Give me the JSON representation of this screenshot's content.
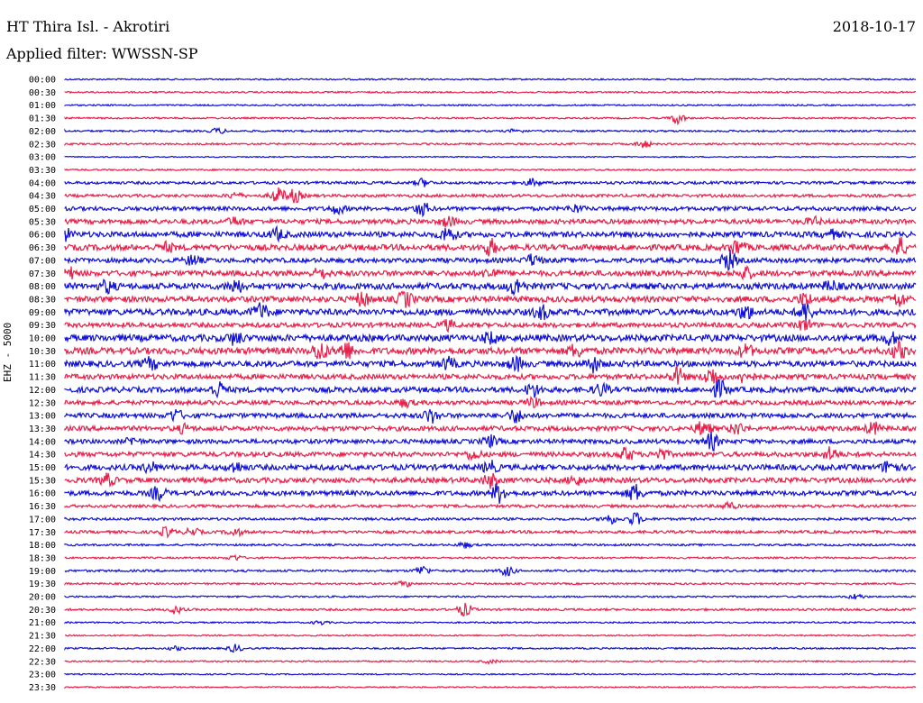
{
  "header": {
    "title": "HT Thira Isl. - Akrotiri",
    "date": "2018-10-17",
    "filter": "Applied filter: WWSSN-SP"
  },
  "y_axis_label": "EHZ - 5000",
  "colors": {
    "even_row": "#1010d8",
    "odd_row": "#e8204a"
  },
  "chart_data": {
    "type": "line",
    "title": "HT Thira Isl. - Akrotiri",
    "subtitle": "Applied filter: WWSSN-SP",
    "ylabel": "EHZ - 5000",
    "rows": [
      "00:00",
      "00:30",
      "01:00",
      "01:30",
      "02:00",
      "02:30",
      "03:00",
      "03:30",
      "04:00",
      "04:30",
      "05:00",
      "05:30",
      "06:00",
      "06:30",
      "07:00",
      "07:30",
      "08:00",
      "08:30",
      "09:00",
      "09:30",
      "10:00",
      "10:30",
      "11:00",
      "11:30",
      "12:00",
      "12:30",
      "13:00",
      "13:30",
      "14:00",
      "14:30",
      "15:00",
      "15:30",
      "16:00",
      "16:30",
      "17:00",
      "17:30",
      "18:00",
      "18:30",
      "19:00",
      "19:30",
      "20:00",
      "20:30",
      "21:00",
      "21:30",
      "22:00",
      "22:30",
      "23:00",
      "23:30"
    ],
    "noise_level": [
      0.8,
      0.9,
      0.8,
      0.9,
      1.0,
      1.0,
      0.6,
      0.9,
      1.5,
      1.6,
      2.2,
      2.6,
      3.0,
      3.2,
      2.6,
      3.0,
      3.4,
      3.2,
      3.4,
      2.6,
      3.6,
      3.6,
      3.2,
      2.8,
      3.0,
      2.4,
      2.6,
      2.6,
      2.4,
      2.6,
      3.0,
      2.8,
      2.6,
      1.6,
      1.4,
      1.6,
      1.1,
      1.0,
      1.2,
      1.0,
      0.9,
      1.2,
      0.8,
      0.8,
      0.9,
      0.8,
      0.7,
      0.7
    ],
    "bursts": [
      [],
      [],
      [],
      [
        [
          0.72,
          6
        ]
      ],
      [
        [
          0.18,
          3
        ],
        [
          0.53,
          2
        ]
      ],
      [
        [
          0.68,
          4
        ]
      ],
      [],
      [],
      [
        [
          0.42,
          4
        ],
        [
          0.55,
          4
        ]
      ],
      [
        [
          0.25,
          8
        ],
        [
          0.27,
          7
        ],
        [
          0.2,
          3
        ]
      ],
      [
        [
          0.32,
          5
        ],
        [
          0.42,
          7
        ],
        [
          0.6,
          4
        ]
      ],
      [
        [
          0.2,
          4
        ],
        [
          0.45,
          5
        ],
        [
          0.88,
          4
        ]
      ],
      [
        [
          0.0,
          6
        ],
        [
          0.25,
          6
        ],
        [
          0.45,
          8
        ],
        [
          0.9,
          4
        ]
      ],
      [
        [
          0.12,
          4
        ],
        [
          0.5,
          8
        ],
        [
          0.79,
          8
        ],
        [
          0.98,
          10
        ]
      ],
      [
        [
          0.15,
          5
        ],
        [
          0.55,
          6
        ],
        [
          0.78,
          10
        ]
      ],
      [
        [
          0.0,
          12
        ],
        [
          0.3,
          5
        ],
        [
          0.5,
          5
        ],
        [
          0.8,
          6
        ]
      ],
      [
        [
          0.05,
          6
        ],
        [
          0.2,
          7
        ],
        [
          0.53,
          9
        ],
        [
          0.9,
          5
        ]
      ],
      [
        [
          0.35,
          7
        ],
        [
          0.4,
          8
        ],
        [
          0.87,
          6
        ],
        [
          0.98,
          7
        ]
      ],
      [
        [
          0.23,
          9
        ],
        [
          0.56,
          7
        ],
        [
          0.8,
          7
        ],
        [
          0.87,
          10
        ]
      ],
      [
        [
          0.45,
          5
        ],
        [
          0.87,
          6
        ]
      ],
      [
        [
          0.2,
          6
        ],
        [
          0.5,
          5
        ],
        [
          0.97,
          6
        ]
      ],
      [
        [
          0.3,
          10
        ],
        [
          0.33,
          9
        ],
        [
          0.6,
          6
        ],
        [
          0.8,
          6
        ],
        [
          0.98,
          8
        ]
      ],
      [
        [
          0.1,
          6
        ],
        [
          0.45,
          6
        ],
        [
          0.53,
          7
        ],
        [
          0.62,
          8
        ]
      ],
      [
        [
          0.72,
          9
        ],
        [
          0.76,
          10
        ],
        [
          0.8,
          7
        ]
      ],
      [
        [
          0.18,
          8
        ],
        [
          0.55,
          7
        ],
        [
          0.63,
          6
        ],
        [
          0.77,
          9
        ]
      ],
      [
        [
          0.4,
          4
        ],
        [
          0.55,
          5
        ]
      ],
      [
        [
          0.13,
          6
        ],
        [
          0.43,
          7
        ],
        [
          0.53,
          7
        ]
      ],
      [
        [
          0.14,
          4
        ],
        [
          0.75,
          8
        ],
        [
          0.79,
          6
        ],
        [
          0.95,
          6
        ]
      ],
      [
        [
          0.08,
          4
        ],
        [
          0.5,
          6
        ],
        [
          0.76,
          9
        ]
      ],
      [
        [
          0.48,
          5
        ],
        [
          0.66,
          7
        ],
        [
          0.7,
          6
        ],
        [
          0.9,
          7
        ]
      ],
      [
        [
          0.1,
          5
        ],
        [
          0.2,
          5
        ],
        [
          0.5,
          6
        ],
        [
          0.97,
          8
        ]
      ],
      [
        [
          0.05,
          6
        ],
        [
          0.5,
          7
        ],
        [
          0.6,
          5
        ]
      ],
      [
        [
          0.11,
          7
        ],
        [
          0.51,
          10
        ],
        [
          0.67,
          9
        ]
      ],
      [
        [
          0.78,
          4
        ]
      ],
      [
        [
          0.64,
          5
        ],
        [
          0.67,
          7
        ]
      ],
      [
        [
          0.12,
          5
        ],
        [
          0.15,
          4
        ],
        [
          0.2,
          4
        ]
      ],
      [
        [
          0.47,
          3
        ]
      ],
      [
        [
          0.2,
          3
        ]
      ],
      [
        [
          0.42,
          5
        ],
        [
          0.52,
          5
        ]
      ],
      [
        [
          0.4,
          3
        ]
      ],
      [
        [
          0.93,
          3
        ]
      ],
      [
        [
          0.13,
          4
        ],
        [
          0.47,
          7
        ]
      ],
      [
        [
          0.3,
          2
        ]
      ],
      [],
      [
        [
          0.2,
          4
        ],
        [
          0.13,
          2
        ]
      ],
      [
        [
          0.5,
          2
        ]
      ],
      [],
      []
    ]
  }
}
